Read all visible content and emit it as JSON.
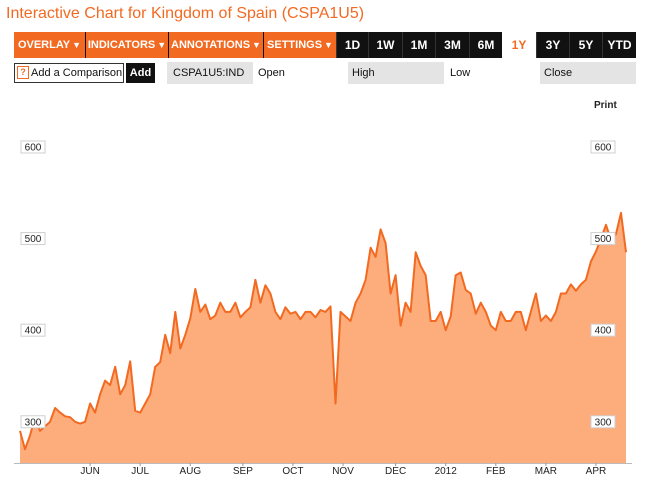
{
  "title": "Interactive Chart for Kingdom of Spain (CSPA1U5)",
  "toolbar": {
    "menus": [
      "OVERLAY",
      "INDICATORS",
      "ANNOTATIONS",
      "SETTINGS"
    ],
    "caret": "▼",
    "ranges": [
      "1D",
      "1W",
      "1M",
      "3M",
      "6M",
      "1Y",
      "3Y",
      "5Y",
      "YTD"
    ],
    "active_range": "1Y"
  },
  "comparison": {
    "icon": "?",
    "label": "Add a Comparison",
    "add_label": "Add"
  },
  "quote": {
    "ticker": "CSPA1U5:IND",
    "open_label": "Open",
    "high_label": "High",
    "low_label": "Low",
    "close_label": "Close"
  },
  "print_label": "Print",
  "colors": {
    "accent": "#f26a21",
    "area_fill": "#fcad7b",
    "line": "#f26a21",
    "toolbar_bg": "#111111"
  },
  "chart_data": {
    "type": "area",
    "title": "",
    "xlabel": "",
    "ylabel": "",
    "ylim": [
      255,
      660
    ],
    "y_ticks": [
      300,
      400,
      500,
      600
    ],
    "y_axis_both_sides": true,
    "grid": false,
    "x_tick_labels": [
      "JUN",
      "JUL",
      "AUG",
      "SEP",
      "OCT",
      "NOV",
      "DEC",
      "2012",
      "FEB",
      "MAR",
      "APR"
    ],
    "x_tick_positions": [
      14,
      24,
      34,
      44.5,
      54.5,
      64.5,
      75,
      85,
      95,
      105,
      115
    ],
    "x_range": [
      0,
      121
    ],
    "series": [
      {
        "x": [
          0,
          1,
          2,
          3,
          4,
          5,
          6,
          7,
          8,
          9,
          10,
          11,
          12,
          13,
          14,
          15,
          16,
          17,
          18,
          19,
          20,
          21,
          22,
          23,
          24,
          25,
          26,
          27,
          28,
          29,
          30,
          31,
          32,
          33,
          34,
          35,
          36,
          37,
          38,
          39,
          40,
          41,
          42,
          43,
          44,
          45,
          46,
          47,
          48,
          49,
          50,
          51,
          52,
          53,
          54,
          55,
          56,
          57,
          58,
          59,
          60,
          61,
          62,
          63,
          64,
          65,
          66,
          67,
          68,
          69,
          70,
          71,
          72,
          73,
          74,
          75,
          76,
          77,
          78,
          79,
          80,
          81,
          82,
          83,
          84,
          85,
          86,
          87,
          88,
          89,
          90,
          91,
          92,
          93,
          94,
          95,
          96,
          97,
          98,
          99,
          100,
          101,
          102,
          103,
          104,
          105,
          106,
          107,
          108,
          109,
          110,
          111,
          112,
          113,
          114,
          115,
          116,
          117,
          118,
          119,
          120,
          121
        ],
        "values": [
          290,
          270,
          285,
          305,
          290,
          295,
          300,
          315,
          310,
          306,
          305,
          300,
          298,
          300,
          320,
          310,
          330,
          345,
          340,
          360,
          330,
          340,
          366,
          312,
          310,
          320,
          330,
          360,
          365,
          395,
          375,
          420,
          380,
          395,
          413,
          445,
          420,
          428,
          412,
          416,
          430,
          420,
          420,
          430,
          414,
          420,
          425,
          455,
          430,
          449,
          440,
          420,
          412,
          425,
          418,
          420,
          412,
          420,
          420,
          414,
          422,
          420,
          426,
          320,
          420,
          415,
          410,
          430,
          440,
          455,
          490,
          480,
          510,
          495,
          440,
          460,
          405,
          430,
          420,
          485,
          470,
          460,
          410,
          410,
          420,
          400,
          415,
          460,
          463,
          444,
          440,
          418,
          430,
          420,
          405,
          400,
          420,
          410,
          410,
          420,
          420,
          400,
          420,
          440,
          410,
          416,
          410,
          420,
          440,
          440,
          450,
          443,
          450,
          455,
          475,
          486,
          500,
          515,
          498,
          505,
          528,
          485
        ]
      }
    ]
  }
}
